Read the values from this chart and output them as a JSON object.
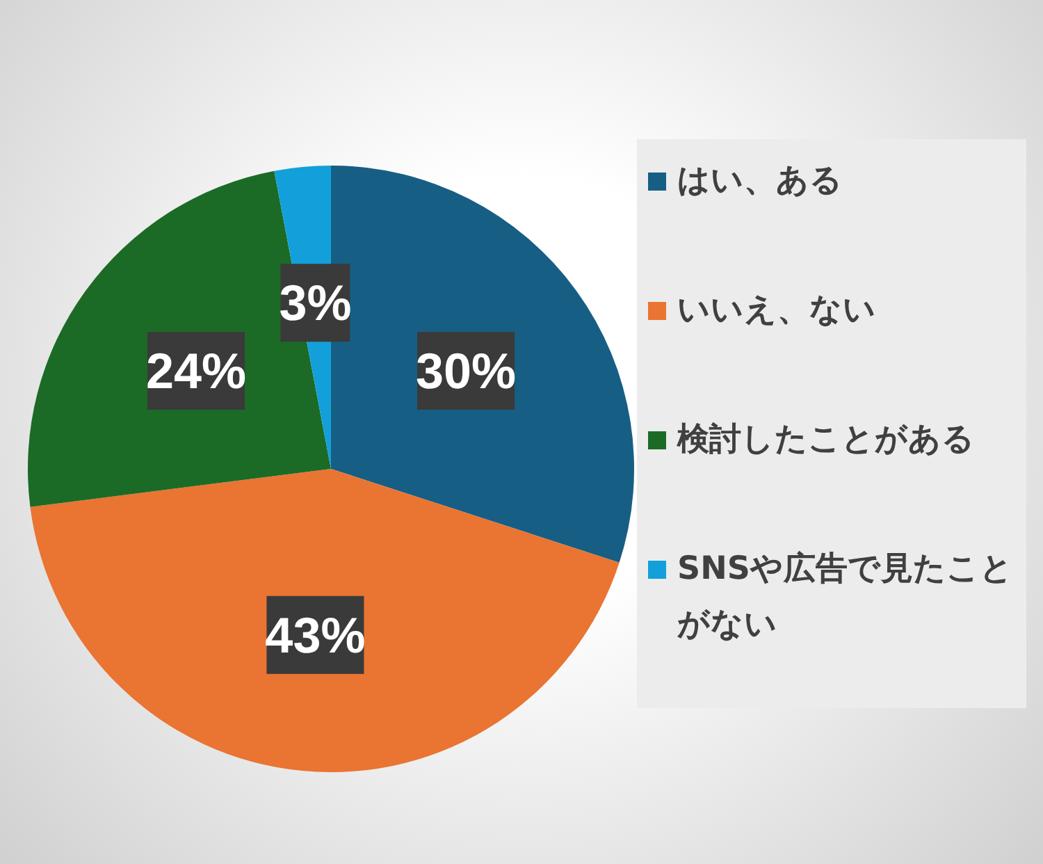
{
  "chart_data": {
    "type": "pie",
    "categories": [
      "はい、ある",
      "いいえ、ない",
      "検討したことがある",
      "SNSや広告で見たことがない"
    ],
    "values": [
      30,
      43,
      24,
      3
    ],
    "colors": [
      "#175e85",
      "#ea7432",
      "#1b6b26",
      "#13a0da"
    ],
    "value_labels": [
      "30%",
      "43%",
      "24%",
      "3%"
    ],
    "legend": "right"
  }
}
